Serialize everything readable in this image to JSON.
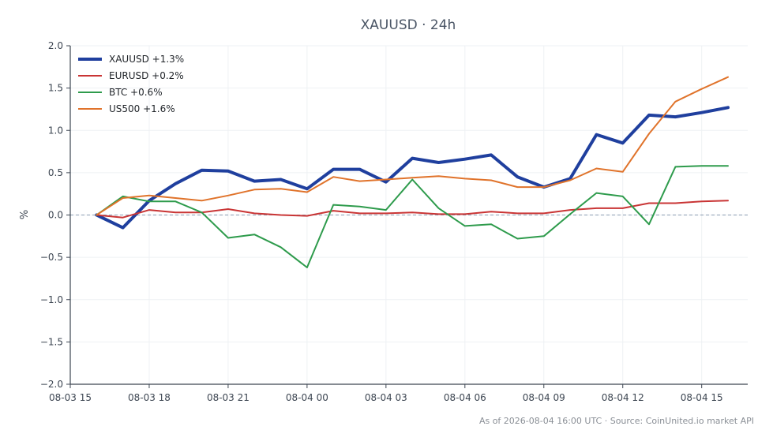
{
  "chart_data": {
    "type": "line",
    "title": "XAUUSD · 24h",
    "xlabel": "",
    "ylabel": "%",
    "ylim": [
      -2.0,
      2.0
    ],
    "yticks": [
      -2.0,
      -1.5,
      -1.0,
      -0.5,
      0.0,
      0.5,
      1.0,
      1.5,
      2.0
    ],
    "ytick_labels": [
      "−2.0",
      "−1.5",
      "−1.0",
      "−0.5",
      "0.0",
      "0.5",
      "1.0",
      "1.5",
      "2.0"
    ],
    "xlim": [
      "2026-08-03 15:00",
      "2026-08-04 16:45"
    ],
    "xticks": [
      "2026-08-03 15:00",
      "2026-08-03 18:00",
      "2026-08-03 21:00",
      "2026-08-04 00:00",
      "2026-08-04 03:00",
      "2026-08-04 06:00",
      "2026-08-04 09:00",
      "2026-08-04 12:00",
      "2026-08-04 15:00"
    ],
    "xtick_labels": [
      "08-03 15",
      "08-03 18",
      "08-03 21",
      "08-04 00",
      "08-04 03",
      "08-04 06",
      "08-04 09",
      "08-04 12",
      "08-04 15"
    ],
    "x": [
      "2026-08-03 16:00",
      "2026-08-03 17:00",
      "2026-08-03 18:00",
      "2026-08-03 19:00",
      "2026-08-03 20:00",
      "2026-08-03 21:00",
      "2026-08-03 22:00",
      "2026-08-03 23:00",
      "2026-08-04 00:00",
      "2026-08-04 01:00",
      "2026-08-04 02:00",
      "2026-08-04 03:00",
      "2026-08-04 04:00",
      "2026-08-04 05:00",
      "2026-08-04 06:00",
      "2026-08-04 07:00",
      "2026-08-04 08:00",
      "2026-08-04 09:00",
      "2026-08-04 10:00",
      "2026-08-04 11:00",
      "2026-08-04 12:00",
      "2026-08-04 13:00",
      "2026-08-04 14:00",
      "2026-08-04 15:00",
      "2026-08-04 16:00"
    ],
    "series": [
      {
        "name": "XAUUSD +1.3%",
        "color": "#1f3f9e",
        "width": 4,
        "values": [
          0.0,
          -0.15,
          0.17,
          0.37,
          0.53,
          0.52,
          0.4,
          0.42,
          0.31,
          0.54,
          0.54,
          0.39,
          0.67,
          0.62,
          0.66,
          0.71,
          0.45,
          0.33,
          0.43,
          0.95,
          0.85,
          1.18,
          1.16,
          1.21,
          1.27
        ]
      },
      {
        "name": "EURUSD +0.2%",
        "color": "#c93535",
        "width": 2,
        "values": [
          0.0,
          -0.03,
          0.06,
          0.03,
          0.03,
          0.07,
          0.02,
          0.0,
          -0.01,
          0.05,
          0.02,
          0.02,
          0.03,
          0.01,
          0.01,
          0.04,
          0.02,
          0.02,
          0.06,
          0.08,
          0.08,
          0.14,
          0.14,
          0.16,
          0.17
        ]
      },
      {
        "name": "BTC +0.6%",
        "color": "#2e9b4c",
        "width": 2,
        "values": [
          0.0,
          0.22,
          0.16,
          0.16,
          0.03,
          -0.27,
          -0.23,
          -0.38,
          -0.62,
          0.12,
          0.1,
          0.06,
          0.42,
          0.08,
          -0.13,
          -0.11,
          -0.28,
          -0.25,
          0.01,
          0.26,
          0.22,
          -0.11,
          0.57,
          0.58,
          0.58
        ]
      },
      {
        "name": "US500 +1.6%",
        "color": "#e0732b",
        "width": 2,
        "values": [
          0.0,
          0.2,
          0.23,
          0.2,
          0.17,
          0.23,
          0.3,
          0.31,
          0.27,
          0.45,
          0.4,
          0.42,
          0.44,
          0.46,
          0.43,
          0.41,
          0.33,
          0.33,
          0.41,
          0.55,
          0.51,
          0.96,
          1.34,
          1.49,
          1.63
        ]
      }
    ],
    "zero_line": {
      "value": 0.0,
      "color": "#8a9bb0",
      "style": "dashed"
    },
    "grid": true,
    "legend": "top-left"
  },
  "footer": {
    "text": "As of 2026-08-04 16:00 UTC · Source: CoinUnited.io market API"
  },
  "colors": {
    "axis": "#3d4652",
    "grid": "#eef1f4"
  }
}
